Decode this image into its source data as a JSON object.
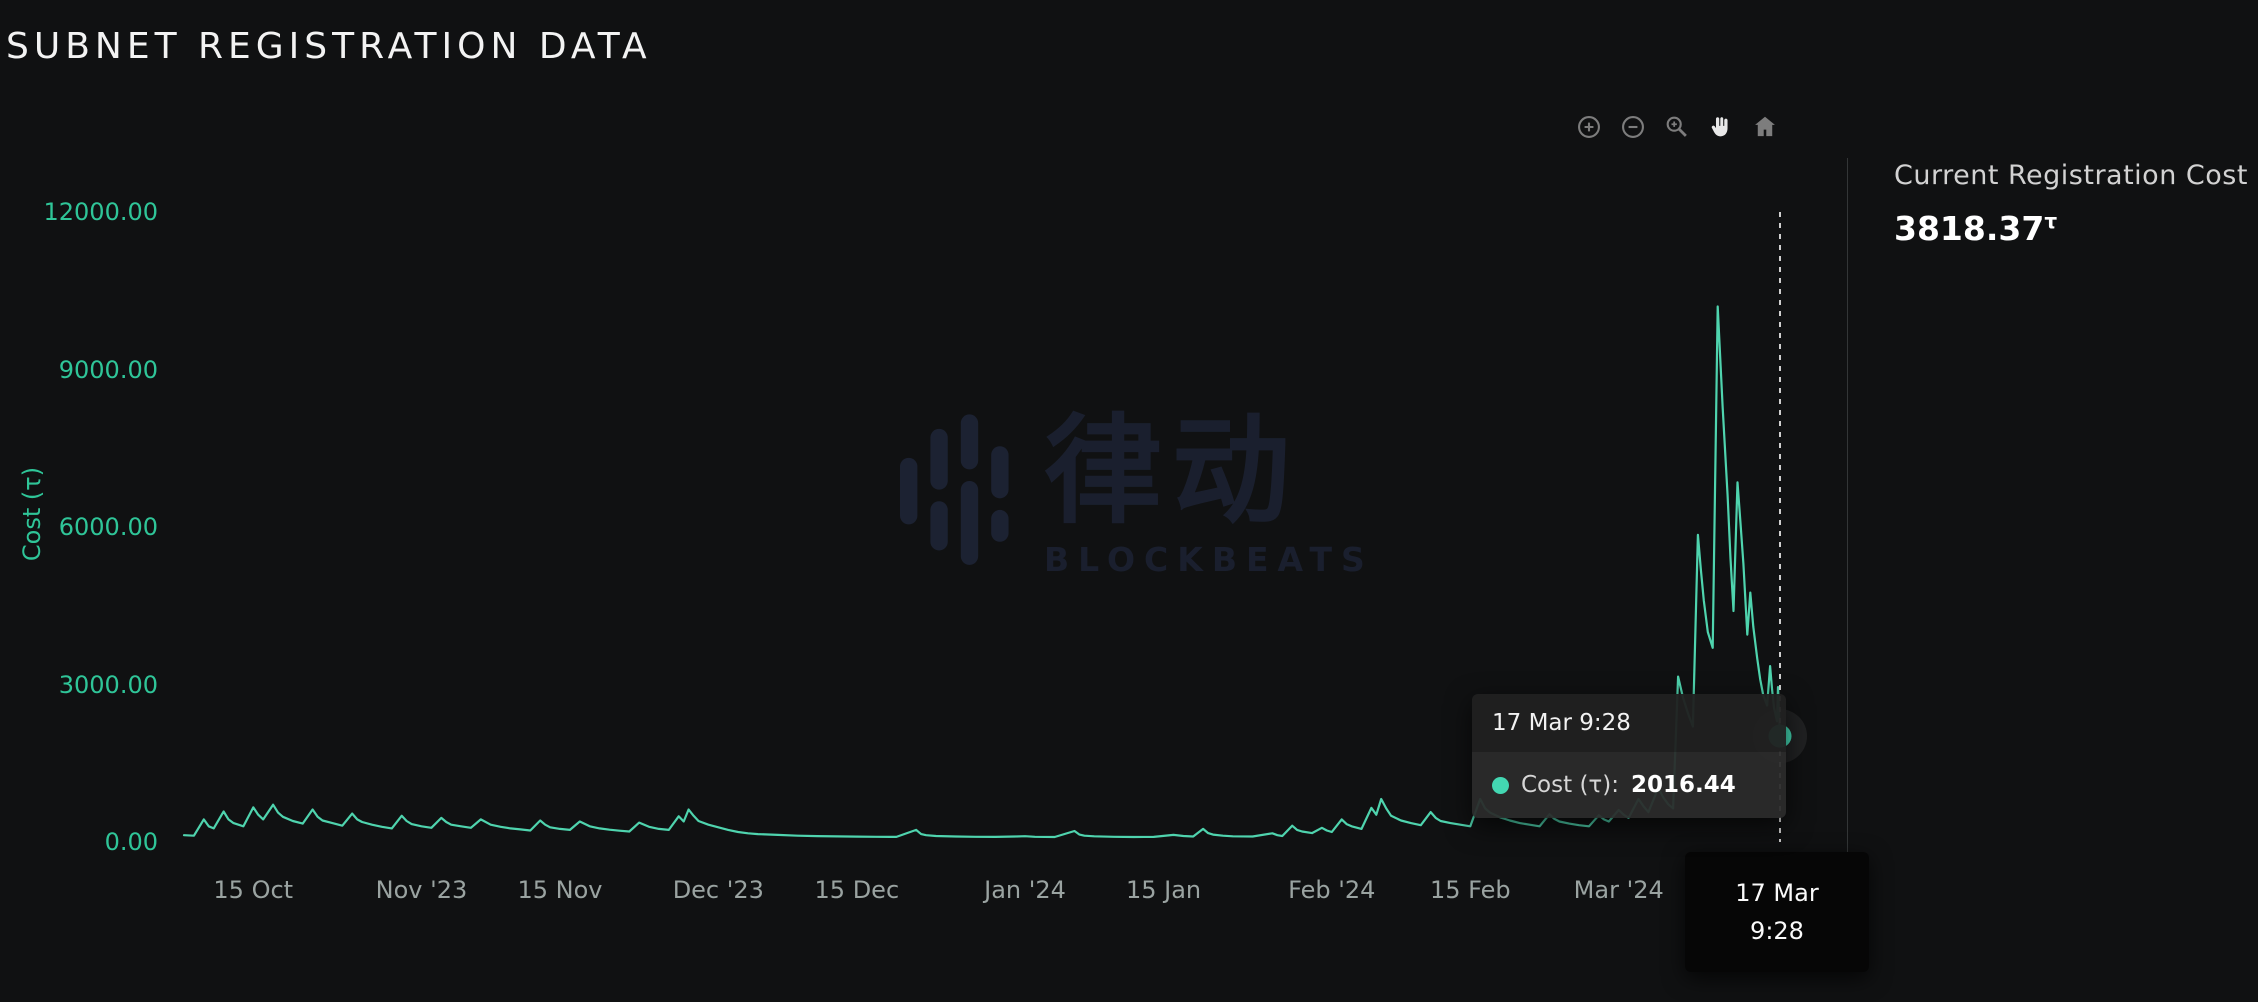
{
  "page": {
    "title": "SUBNET REGISTRATION DATA",
    "background": "#101112"
  },
  "modebar": {
    "icons": [
      {
        "name": "zoom-in-icon"
      },
      {
        "name": "zoom-out-icon"
      },
      {
        "name": "zoom-icon"
      },
      {
        "name": "pan-icon",
        "active": true
      },
      {
        "name": "home-icon"
      }
    ]
  },
  "side_panel": {
    "label": "Current Registration Cost",
    "value": "3818.37",
    "unit": "τ"
  },
  "hover_tooltip": {
    "time": "17 Mar 9:28",
    "series_label": "Cost (τ):",
    "value": "2016.44",
    "dot_color": "#43d7b2"
  },
  "x_hover_label": {
    "line1": "17 Mar",
    "line2": "9:28"
  },
  "watermark": {
    "cn": "律动",
    "en": "BLOCKBEATS"
  },
  "chart_data": {
    "type": "line",
    "title": "SUBNET REGISTRATION DATA",
    "xlabel": "",
    "ylabel": "Cost (τ)",
    "ylim": [
      0,
      12000
    ],
    "x_unit": "days from start of series (early Oct '23) to 17 Mar '24 9:28",
    "x_range_days": [
      0,
      161.3
    ],
    "grid": false,
    "legend": "none",
    "line_color": "#4fd4ae",
    "cursor_line_color": "#ffffff",
    "yticks": [
      {
        "label": "0.00",
        "value": 0
      },
      {
        "label": "3000.00",
        "value": 3000
      },
      {
        "label": "6000.00",
        "value": 6000
      },
      {
        "label": "9000.00",
        "value": 9000
      },
      {
        "label": "12000.00",
        "value": 12000
      }
    ],
    "xticks": [
      {
        "label": "15 Oct",
        "day": 7
      },
      {
        "label": "Nov '23",
        "day": 24
      },
      {
        "label": "15 Nov",
        "day": 38
      },
      {
        "label": "Dec '23",
        "day": 54
      },
      {
        "label": "15 Dec",
        "day": 68
      },
      {
        "label": "Jan '24",
        "day": 85
      },
      {
        "label": "15 Jan",
        "day": 99
      },
      {
        "label": "Feb '24",
        "day": 116
      },
      {
        "label": "15 Feb",
        "day": 130
      },
      {
        "label": "Mar '24",
        "day": 145
      }
    ],
    "series": [
      {
        "name": "Cost (τ)",
        "points": [
          [
            0,
            130
          ],
          [
            1,
            120
          ],
          [
            2,
            430
          ],
          [
            2.5,
            300
          ],
          [
            3,
            260
          ],
          [
            4,
            580
          ],
          [
            4.5,
            430
          ],
          [
            5,
            360
          ],
          [
            6,
            300
          ],
          [
            7,
            660
          ],
          [
            7.5,
            520
          ],
          [
            8,
            430
          ],
          [
            9,
            710
          ],
          [
            9.5,
            560
          ],
          [
            10,
            480
          ],
          [
            11,
            400
          ],
          [
            12,
            350
          ],
          [
            13,
            620
          ],
          [
            13.5,
            480
          ],
          [
            14,
            410
          ],
          [
            15,
            360
          ],
          [
            16,
            310
          ],
          [
            17,
            540
          ],
          [
            17.5,
            430
          ],
          [
            18,
            380
          ],
          [
            19,
            330
          ],
          [
            20,
            290
          ],
          [
            21,
            260
          ],
          [
            22,
            500
          ],
          [
            22.5,
            400
          ],
          [
            23,
            340
          ],
          [
            24,
            300
          ],
          [
            25,
            270
          ],
          [
            26,
            460
          ],
          [
            26.5,
            380
          ],
          [
            27,
            330
          ],
          [
            28,
            300
          ],
          [
            29,
            270
          ],
          [
            30,
            430
          ],
          [
            31,
            330
          ],
          [
            32,
            290
          ],
          [
            33,
            260
          ],
          [
            34,
            240
          ],
          [
            35,
            220
          ],
          [
            36,
            410
          ],
          [
            36.5,
            330
          ],
          [
            37,
            280
          ],
          [
            38,
            250
          ],
          [
            39,
            230
          ],
          [
            40,
            390
          ],
          [
            41,
            300
          ],
          [
            42,
            260
          ],
          [
            43,
            235
          ],
          [
            44,
            215
          ],
          [
            45,
            200
          ],
          [
            46,
            370
          ],
          [
            47,
            290
          ],
          [
            48,
            250
          ],
          [
            49,
            230
          ],
          [
            50,
            490
          ],
          [
            50.5,
            390
          ],
          [
            51,
            620
          ],
          [
            51.5,
            500
          ],
          [
            52,
            400
          ],
          [
            53,
            330
          ],
          [
            54,
            280
          ],
          [
            55,
            230
          ],
          [
            56,
            190
          ],
          [
            57,
            165
          ],
          [
            58,
            150
          ],
          [
            60,
            135
          ],
          [
            62,
            120
          ],
          [
            64,
            112
          ],
          [
            66,
            106
          ],
          [
            68,
            102
          ],
          [
            70,
            100
          ],
          [
            72,
            98
          ],
          [
            74,
            230
          ],
          [
            74.5,
            150
          ],
          [
            75,
            130
          ],
          [
            76,
            115
          ],
          [
            78,
            105
          ],
          [
            80,
            100
          ],
          [
            82,
            98
          ],
          [
            84,
            105
          ],
          [
            85,
            110
          ],
          [
            86,
            100
          ],
          [
            88,
            96
          ],
          [
            90,
            210
          ],
          [
            90.5,
            140
          ],
          [
            91,
            120
          ],
          [
            92,
            108
          ],
          [
            94,
            100
          ],
          [
            96,
            96
          ],
          [
            98,
            98
          ],
          [
            100,
            135
          ],
          [
            101,
            115
          ],
          [
            102,
            105
          ],
          [
            103,
            250
          ],
          [
            103.5,
            170
          ],
          [
            104,
            140
          ],
          [
            105,
            120
          ],
          [
            106,
            108
          ],
          [
            108,
            104
          ],
          [
            110,
            165
          ],
          [
            110.5,
            130
          ],
          [
            111,
            115
          ],
          [
            112,
            310
          ],
          [
            112.5,
            230
          ],
          [
            113,
            200
          ],
          [
            114,
            170
          ],
          [
            115,
            270
          ],
          [
            115.5,
            220
          ],
          [
            116,
            190
          ],
          [
            117,
            430
          ],
          [
            117.5,
            340
          ],
          [
            118,
            300
          ],
          [
            119,
            250
          ],
          [
            120,
            650
          ],
          [
            120.5,
            520
          ],
          [
            121,
            820
          ],
          [
            121.5,
            640
          ],
          [
            122,
            500
          ],
          [
            123,
            410
          ],
          [
            124,
            360
          ],
          [
            125,
            320
          ],
          [
            126,
            570
          ],
          [
            126.5,
            460
          ],
          [
            127,
            400
          ],
          [
            128,
            360
          ],
          [
            129,
            330
          ],
          [
            130,
            300
          ],
          [
            131,
            820
          ],
          [
            131.5,
            640
          ],
          [
            132,
            560
          ],
          [
            133,
            470
          ],
          [
            134,
            410
          ],
          [
            135,
            360
          ],
          [
            136,
            330
          ],
          [
            137,
            300
          ],
          [
            138,
            530
          ],
          [
            138.5,
            440
          ],
          [
            139,
            390
          ],
          [
            140,
            350
          ],
          [
            141,
            320
          ],
          [
            142,
            300
          ],
          [
            143,
            510
          ],
          [
            143.5,
            430
          ],
          [
            144,
            390
          ],
          [
            145,
            610
          ],
          [
            145.5,
            520
          ],
          [
            146,
            460
          ],
          [
            147,
            820
          ],
          [
            147.5,
            680
          ],
          [
            148,
            570
          ],
          [
            149,
            1030
          ],
          [
            149.5,
            850
          ],
          [
            150,
            720
          ],
          [
            150.5,
            640
          ],
          [
            151,
            3150
          ],
          [
            151.5,
            2750
          ],
          [
            152,
            2450
          ],
          [
            152.5,
            2200
          ],
          [
            153,
            5850
          ],
          [
            153.3,
            5200
          ],
          [
            153.6,
            4600
          ],
          [
            154,
            4000
          ],
          [
            154.5,
            3700
          ],
          [
            155,
            10200
          ],
          [
            155.5,
            8300
          ],
          [
            156,
            6600
          ],
          [
            156.3,
            5400
          ],
          [
            156.6,
            4400
          ],
          [
            157,
            6850
          ],
          [
            157.3,
            6100
          ],
          [
            157.6,
            5300
          ],
          [
            158,
            3950
          ],
          [
            158.3,
            4750
          ],
          [
            158.6,
            4100
          ],
          [
            159,
            3500
          ],
          [
            159.3,
            3100
          ],
          [
            159.6,
            2800
          ],
          [
            160,
            2600
          ],
          [
            160.3,
            3350
          ],
          [
            160.5,
            2900
          ],
          [
            160.7,
            2550
          ],
          [
            161,
            2300
          ],
          [
            161.1,
            2950
          ],
          [
            161.3,
            2016.44
          ]
        ]
      }
    ],
    "cursor_point": {
      "day": 161.3,
      "value": 2016.44,
      "time_label": "17 Mar 9:28"
    },
    "current_registration_cost": 3818.37
  }
}
